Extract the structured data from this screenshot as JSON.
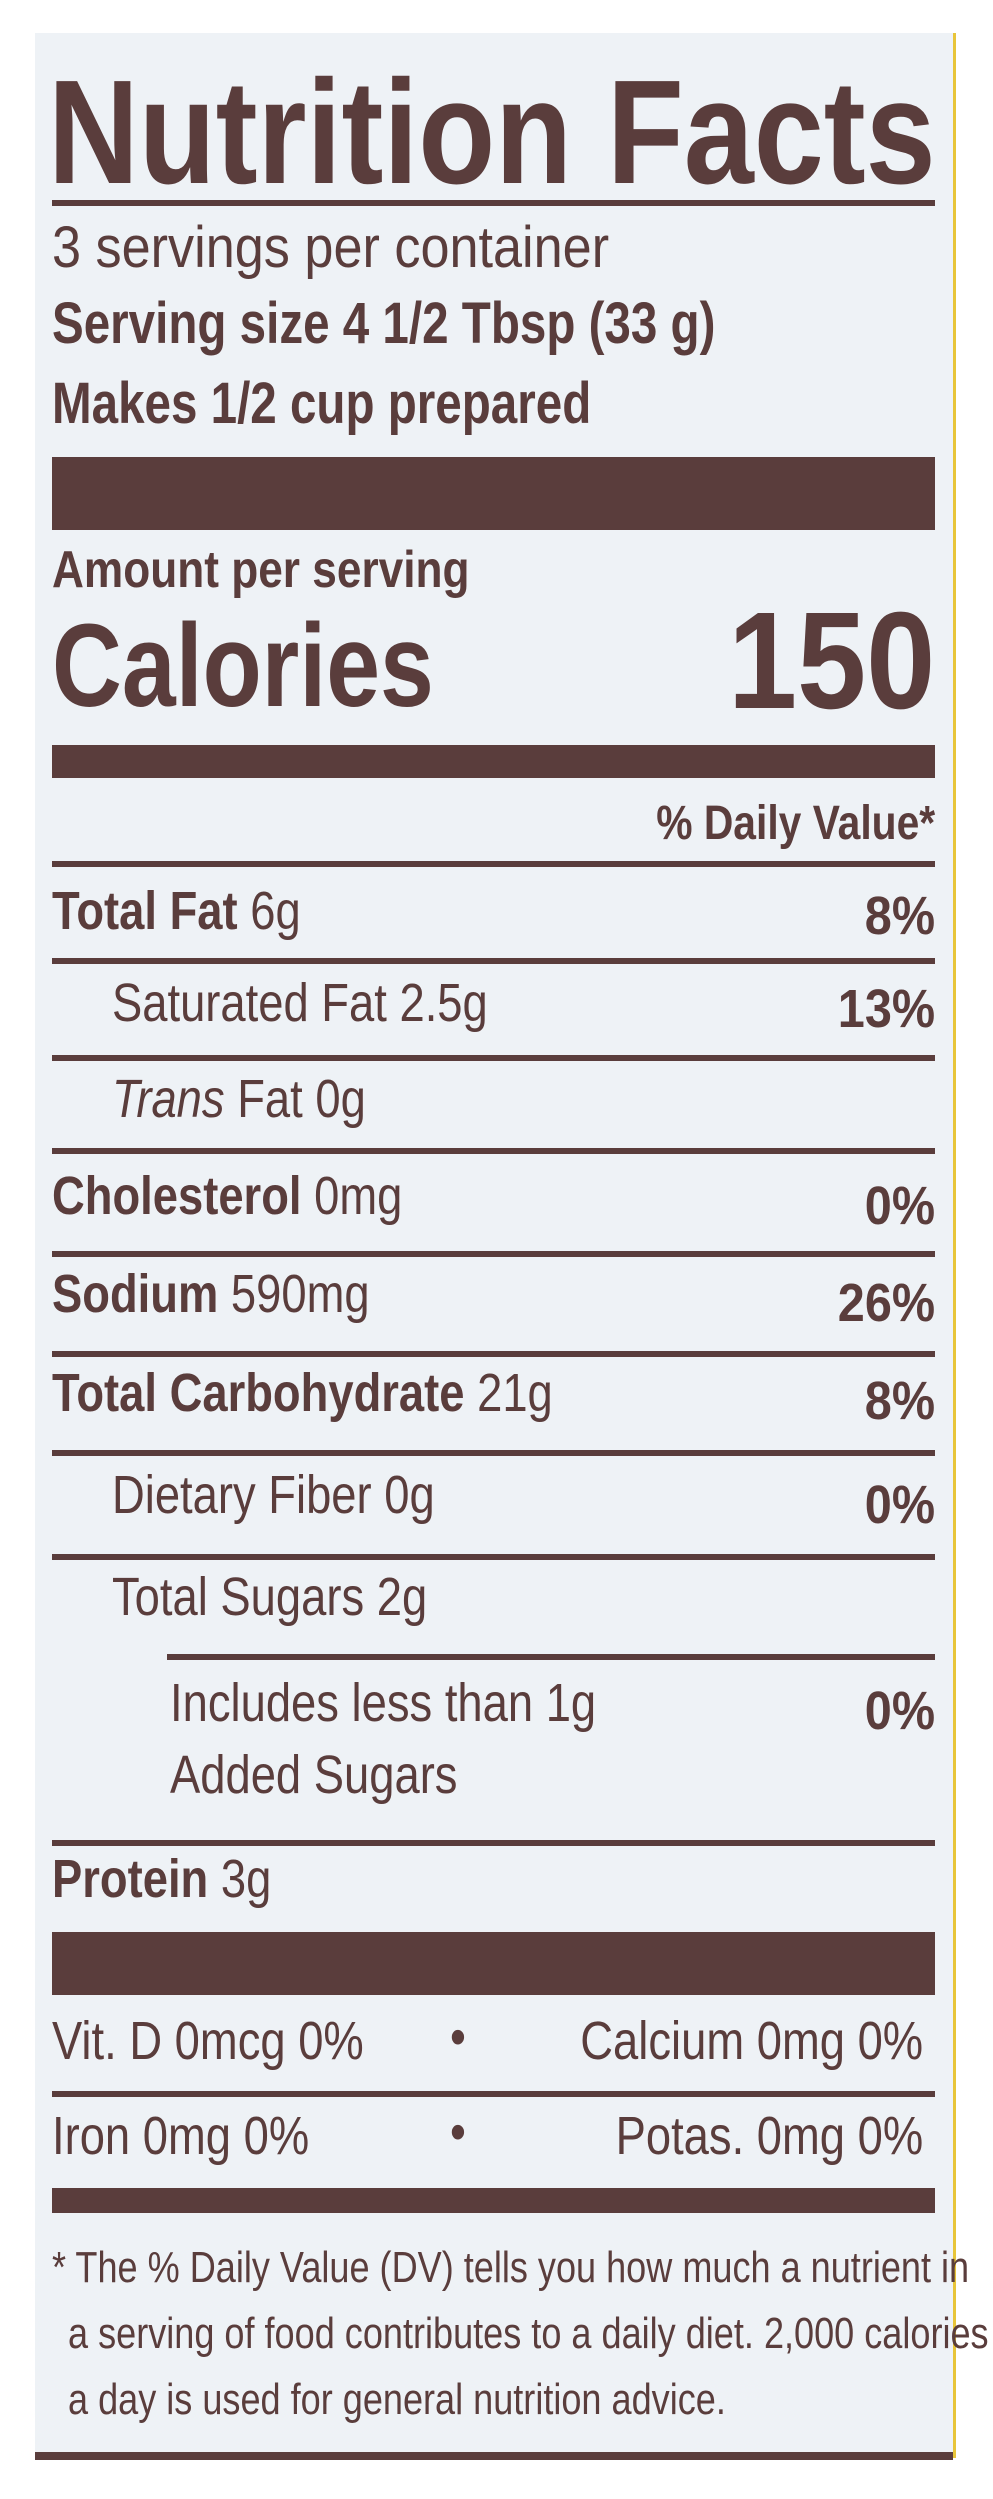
{
  "title": "Nutrition Facts",
  "servings_per_container": "3 servings per container",
  "serving_size": "Serving size 4 1/2 Tbsp (33 g)",
  "makes": "Makes 1/2 cup prepared",
  "amount_per_serving": "Amount per serving",
  "calories_label": "Calories",
  "calories_value": "150",
  "daily_value_header": "% Daily Value*",
  "nutrients": [
    {
      "name": "Total Fat",
      "amount": "6g",
      "dv": "8%"
    },
    {
      "name": "Saturated Fat",
      "amount": "2.5g",
      "dv": "13%"
    },
    {
      "name": "Trans",
      "amount": "Fat 0g",
      "dv": ""
    },
    {
      "name": "Cholesterol",
      "amount": "0mg",
      "dv": "0%"
    },
    {
      "name": "Sodium",
      "amount": "590mg",
      "dv": "26%"
    },
    {
      "name": "Total Carbohydrate",
      "amount": "21g",
      "dv": "8%"
    },
    {
      "name": "Dietary Fiber",
      "amount": "0g",
      "dv": "0%"
    },
    {
      "name": "Total Sugars",
      "amount": "2g",
      "dv": ""
    },
    {
      "name": "Includes less than 1g",
      "amount": "Added Sugars",
      "dv": "0%"
    },
    {
      "name": "Protein",
      "amount": "3g",
      "dv": ""
    }
  ],
  "micronutrients": [
    {
      "left": "Vit. D 0mcg 0%",
      "right": "Calcium 0mg 0%"
    },
    {
      "left": "Iron 0mg 0%",
      "right": "Potas. 0mg 0%"
    }
  ],
  "separator": "•",
  "footnote": [
    "* The % Daily Value (DV) tells you how much a nutrient in",
    "a serving of food contributes to a daily diet. 2,000 calories",
    "a day is used for general nutrition advice."
  ],
  "colors": {
    "text": "#5a3d3c",
    "panel": "#eef2f6",
    "edge": "#e8c53a"
  }
}
